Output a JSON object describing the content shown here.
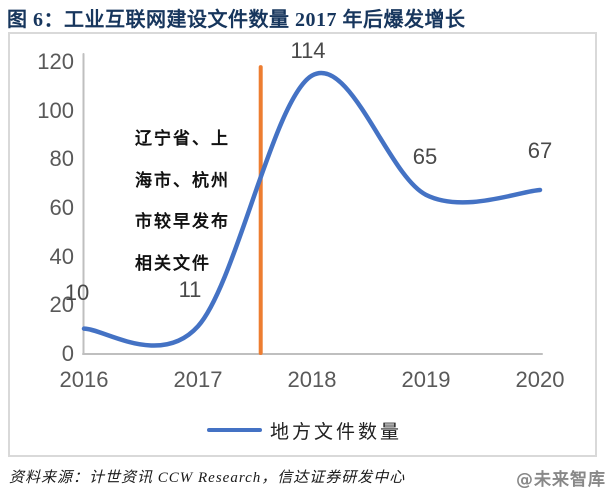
{
  "title": "图 6：工业互联网建设文件数量 2017 年后爆发增长",
  "chart_data": {
    "type": "line",
    "categories": [
      "2016",
      "2017",
      "2018",
      "2019",
      "2020"
    ],
    "series": [
      {
        "name": "地方文件数量",
        "values": [
          10,
          11,
          114,
          65,
          67
        ]
      }
    ],
    "data_labels": [
      "10",
      "11",
      "114",
      "65",
      "67"
    ],
    "ylim": [
      0,
      120
    ],
    "ytick_step": 20,
    "yticks": [
      0,
      20,
      40,
      60,
      80,
      100,
      120
    ],
    "smooth": true,
    "grid": false,
    "legend_position": "bottom",
    "marker_line": {
      "x_year": 2017.55,
      "top_value": 117.5,
      "color": "#ED7D31"
    },
    "annotation_lines": [
      "辽宁省、上",
      "海市、杭州",
      "市较早发布",
      "相关文件"
    ],
    "annotation_full_text": "辽宁省、上海市、杭州市较早发布相关文件"
  },
  "legend": {
    "label": "地方文件数量"
  },
  "source": {
    "text": "资料来源：计世资讯 CCW Research，信达证券研发中心"
  },
  "watermark": "@未来智库",
  "colors": {
    "line": "#4472C4",
    "marker_line": "#ED7D31",
    "axis": "#BFBFBF",
    "title": "#17365D",
    "tick_label": "#595959",
    "data_label": "#494949",
    "frame_border": "#D9D9D9",
    "watermark": "#888888"
  }
}
